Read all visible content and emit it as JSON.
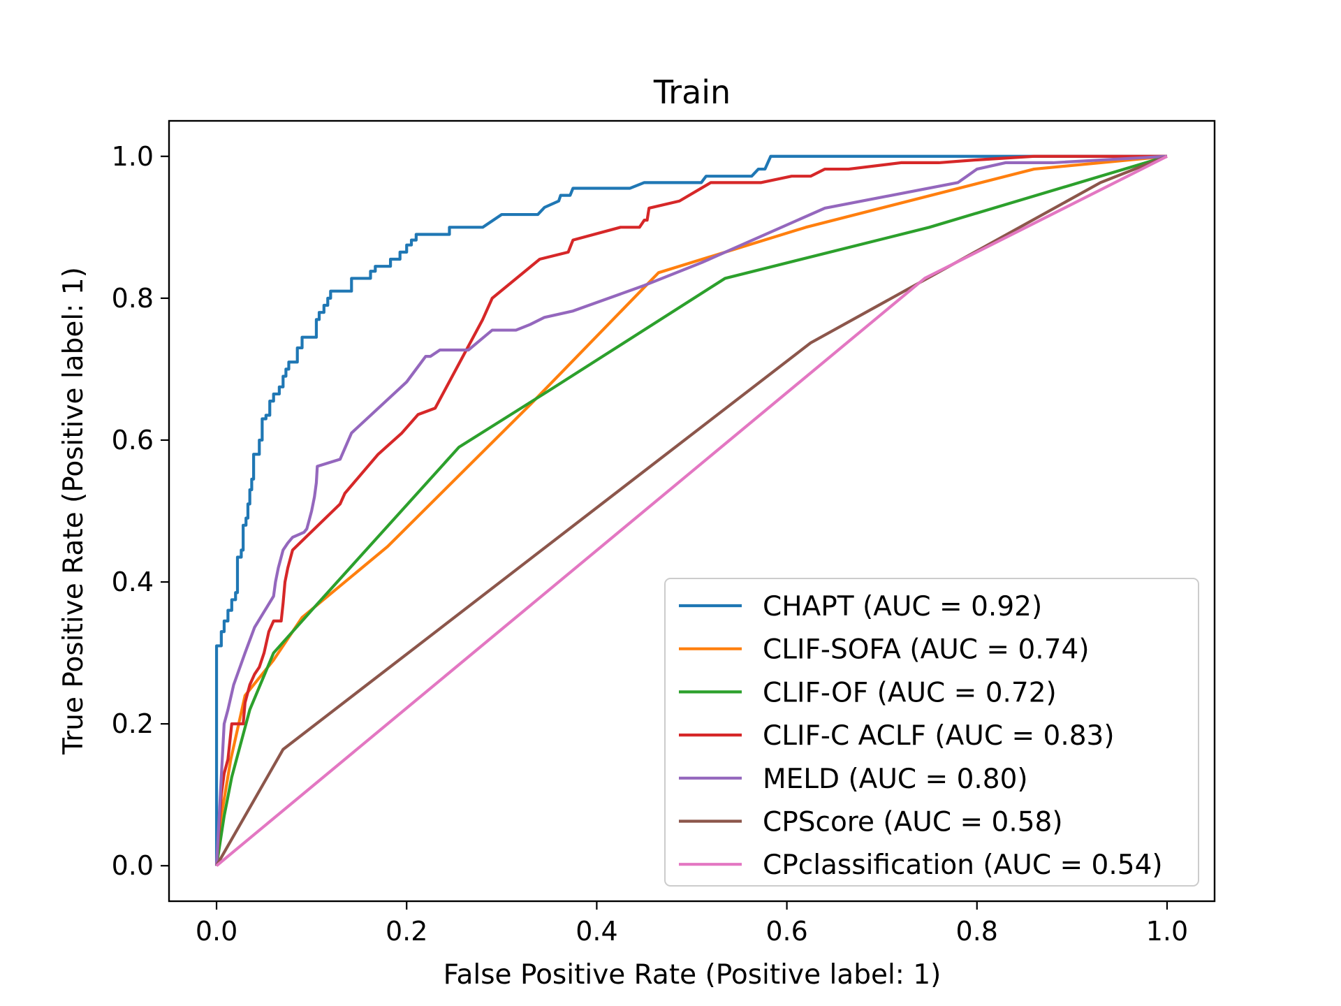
{
  "chart_data": {
    "type": "line",
    "title": "Train",
    "xlabel": "False Positive Rate (Positive label: 1)",
    "ylabel": "True Positive Rate (Positive label: 1)",
    "xlim": [
      -0.05,
      1.05
    ],
    "ylim": [
      -0.05,
      1.05
    ],
    "xticks": [
      0.0,
      0.2,
      0.4,
      0.6,
      0.8,
      1.0
    ],
    "yticks": [
      0.0,
      0.2,
      0.4,
      0.6,
      0.8,
      1.0
    ],
    "xtick_labels": [
      "0.0",
      "0.2",
      "0.4",
      "0.6",
      "0.8",
      "1.0"
    ],
    "ytick_labels": [
      "0.0",
      "0.2",
      "0.4",
      "0.6",
      "0.8",
      "1.0"
    ],
    "grid": false,
    "legend_position": "lower-right",
    "series": [
      {
        "name": "CHAPT (AUC = 0.92)",
        "color": "#1f77b4",
        "points": [
          [
            0,
            0
          ],
          [
            0,
            0.31
          ],
          [
            0.005,
            0.31
          ],
          [
            0.005,
            0.33
          ],
          [
            0.008,
            0.33
          ],
          [
            0.008,
            0.345
          ],
          [
            0.012,
            0.345
          ],
          [
            0.012,
            0.36
          ],
          [
            0.016,
            0.36
          ],
          [
            0.016,
            0.375
          ],
          [
            0.02,
            0.375
          ],
          [
            0.02,
            0.385
          ],
          [
            0.022,
            0.385
          ],
          [
            0.022,
            0.435
          ],
          [
            0.026,
            0.435
          ],
          [
            0.026,
            0.445
          ],
          [
            0.028,
            0.445
          ],
          [
            0.028,
            0.48
          ],
          [
            0.031,
            0.48
          ],
          [
            0.031,
            0.49
          ],
          [
            0.033,
            0.49
          ],
          [
            0.033,
            0.51
          ],
          [
            0.035,
            0.51
          ],
          [
            0.035,
            0.53
          ],
          [
            0.037,
            0.53
          ],
          [
            0.037,
            0.545
          ],
          [
            0.039,
            0.545
          ],
          [
            0.039,
            0.58
          ],
          [
            0.045,
            0.58
          ],
          [
            0.045,
            0.6
          ],
          [
            0.048,
            0.6
          ],
          [
            0.048,
            0.63
          ],
          [
            0.052,
            0.63
          ],
          [
            0.052,
            0.635
          ],
          [
            0.056,
            0.635
          ],
          [
            0.056,
            0.655
          ],
          [
            0.06,
            0.655
          ],
          [
            0.06,
            0.665
          ],
          [
            0.066,
            0.665
          ],
          [
            0.066,
            0.675
          ],
          [
            0.07,
            0.675
          ],
          [
            0.07,
            0.69
          ],
          [
            0.073,
            0.69
          ],
          [
            0.073,
            0.7
          ],
          [
            0.076,
            0.7
          ],
          [
            0.076,
            0.71
          ],
          [
            0.085,
            0.71
          ],
          [
            0.085,
            0.73
          ],
          [
            0.09,
            0.73
          ],
          [
            0.09,
            0.745
          ],
          [
            0.105,
            0.745
          ],
          [
            0.105,
            0.77
          ],
          [
            0.108,
            0.77
          ],
          [
            0.108,
            0.78
          ],
          [
            0.113,
            0.78
          ],
          [
            0.113,
            0.79
          ],
          [
            0.117,
            0.79
          ],
          [
            0.117,
            0.8
          ],
          [
            0.12,
            0.8
          ],
          [
            0.12,
            0.81
          ],
          [
            0.142,
            0.81
          ],
          [
            0.142,
            0.828
          ],
          [
            0.162,
            0.828
          ],
          [
            0.162,
            0.838
          ],
          [
            0.167,
            0.838
          ],
          [
            0.167,
            0.845
          ],
          [
            0.183,
            0.845
          ],
          [
            0.183,
            0.855
          ],
          [
            0.193,
            0.855
          ],
          [
            0.193,
            0.865
          ],
          [
            0.2,
            0.865
          ],
          [
            0.2,
            0.875
          ],
          [
            0.205,
            0.875
          ],
          [
            0.205,
            0.882
          ],
          [
            0.21,
            0.882
          ],
          [
            0.21,
            0.89
          ],
          [
            0.245,
            0.89
          ],
          [
            0.245,
            0.9
          ],
          [
            0.28,
            0.9
          ],
          [
            0.3,
            0.918
          ],
          [
            0.338,
            0.918
          ],
          [
            0.345,
            0.928
          ],
          [
            0.36,
            0.937
          ],
          [
            0.362,
            0.945
          ],
          [
            0.372,
            0.945
          ],
          [
            0.375,
            0.955
          ],
          [
            0.435,
            0.955
          ],
          [
            0.45,
            0.963
          ],
          [
            0.51,
            0.963
          ],
          [
            0.515,
            0.972
          ],
          [
            0.563,
            0.972
          ],
          [
            0.57,
            0.982
          ],
          [
            0.577,
            0.982
          ],
          [
            0.58,
            0.991
          ],
          [
            0.583,
            1.0
          ],
          [
            1.0,
            1.0
          ]
        ]
      },
      {
        "name": "CLIF-SOFA (AUC = 0.74)",
        "color": "#ff7f0e",
        "points": [
          [
            0,
            0
          ],
          [
            0.005,
            0.07
          ],
          [
            0.015,
            0.15
          ],
          [
            0.03,
            0.24
          ],
          [
            0.06,
            0.29
          ],
          [
            0.09,
            0.35
          ],
          [
            0.18,
            0.45
          ],
          [
            0.33,
            0.65
          ],
          [
            0.465,
            0.836
          ],
          [
            0.62,
            0.9
          ],
          [
            0.86,
            0.982
          ],
          [
            1.0,
            1.0
          ]
        ]
      },
      {
        "name": "CLIF-OF (AUC = 0.72)",
        "color": "#2ca02c",
        "points": [
          [
            0,
            0
          ],
          [
            0.008,
            0.07
          ],
          [
            0.016,
            0.125
          ],
          [
            0.035,
            0.22
          ],
          [
            0.06,
            0.3
          ],
          [
            0.1,
            0.36
          ],
          [
            0.255,
            0.59
          ],
          [
            0.35,
            0.67
          ],
          [
            0.535,
            0.828
          ],
          [
            0.75,
            0.9
          ],
          [
            1.0,
            1.0
          ]
        ]
      },
      {
        "name": "CLIF-C ACLF (AUC = 0.83)",
        "color": "#d62728",
        "points": [
          [
            0,
            0
          ],
          [
            0.005,
            0.1
          ],
          [
            0.008,
            0.13
          ],
          [
            0.012,
            0.15
          ],
          [
            0.016,
            0.2
          ],
          [
            0.02,
            0.2
          ],
          [
            0.024,
            0.2
          ],
          [
            0.028,
            0.2
          ],
          [
            0.03,
            0.23
          ],
          [
            0.035,
            0.255
          ],
          [
            0.04,
            0.27
          ],
          [
            0.045,
            0.28
          ],
          [
            0.05,
            0.3
          ],
          [
            0.055,
            0.33
          ],
          [
            0.06,
            0.345
          ],
          [
            0.065,
            0.345
          ],
          [
            0.068,
            0.345
          ],
          [
            0.07,
            0.37
          ],
          [
            0.072,
            0.4
          ],
          [
            0.075,
            0.42
          ],
          [
            0.08,
            0.445
          ],
          [
            0.13,
            0.51
          ],
          [
            0.135,
            0.525
          ],
          [
            0.17,
            0.58
          ],
          [
            0.195,
            0.61
          ],
          [
            0.212,
            0.636
          ],
          [
            0.23,
            0.645
          ],
          [
            0.26,
            0.72
          ],
          [
            0.28,
            0.77
          ],
          [
            0.29,
            0.8
          ],
          [
            0.34,
            0.855
          ],
          [
            0.37,
            0.865
          ],
          [
            0.375,
            0.882
          ],
          [
            0.425,
            0.9
          ],
          [
            0.445,
            0.9
          ],
          [
            0.45,
            0.91
          ],
          [
            0.453,
            0.91
          ],
          [
            0.455,
            0.927
          ],
          [
            0.487,
            0.937
          ],
          [
            0.52,
            0.963
          ],
          [
            0.573,
            0.963
          ],
          [
            0.605,
            0.972
          ],
          [
            0.625,
            0.972
          ],
          [
            0.64,
            0.982
          ],
          [
            0.665,
            0.982
          ],
          [
            0.72,
            0.991
          ],
          [
            0.76,
            0.991
          ],
          [
            0.8,
            0.995
          ],
          [
            0.86,
            1.0
          ],
          [
            1.0,
            1.0
          ]
        ]
      },
      {
        "name": "MELD (AUC = 0.80)",
        "color": "#9467bd",
        "points": [
          [
            0,
            0
          ],
          [
            0.004,
            0.1
          ],
          [
            0.008,
            0.2
          ],
          [
            0.012,
            0.22
          ],
          [
            0.018,
            0.255
          ],
          [
            0.03,
            0.3
          ],
          [
            0.04,
            0.336
          ],
          [
            0.06,
            0.38
          ],
          [
            0.062,
            0.4
          ],
          [
            0.065,
            0.42
          ],
          [
            0.07,
            0.445
          ],
          [
            0.075,
            0.455
          ],
          [
            0.08,
            0.463
          ],
          [
            0.092,
            0.47
          ],
          [
            0.095,
            0.475
          ],
          [
            0.1,
            0.5
          ],
          [
            0.103,
            0.52
          ],
          [
            0.105,
            0.54
          ],
          [
            0.106,
            0.563
          ],
          [
            0.13,
            0.573
          ],
          [
            0.142,
            0.61
          ],
          [
            0.2,
            0.682
          ],
          [
            0.22,
            0.718
          ],
          [
            0.225,
            0.718
          ],
          [
            0.235,
            0.727
          ],
          [
            0.265,
            0.727
          ],
          [
            0.29,
            0.755
          ],
          [
            0.315,
            0.755
          ],
          [
            0.33,
            0.763
          ],
          [
            0.345,
            0.773
          ],
          [
            0.375,
            0.782
          ],
          [
            0.45,
            0.818
          ],
          [
            0.51,
            0.85
          ],
          [
            0.64,
            0.927
          ],
          [
            0.78,
            0.963
          ],
          [
            0.8,
            0.982
          ],
          [
            0.83,
            0.991
          ],
          [
            0.88,
            0.991
          ],
          [
            1.0,
            1.0
          ]
        ]
      },
      {
        "name": "CPScore (AUC = 0.58)",
        "color": "#8c564b",
        "points": [
          [
            0,
            0
          ],
          [
            0.07,
            0.164
          ],
          [
            0.625,
            0.737
          ],
          [
            0.93,
            0.963
          ],
          [
            1.0,
            1.0
          ]
        ]
      },
      {
        "name": "CPclassification (AUC = 0.54)",
        "color": "#e377c2",
        "points": [
          [
            0,
            0
          ],
          [
            0.745,
            0.828
          ],
          [
            1.0,
            1.0
          ]
        ]
      }
    ]
  }
}
